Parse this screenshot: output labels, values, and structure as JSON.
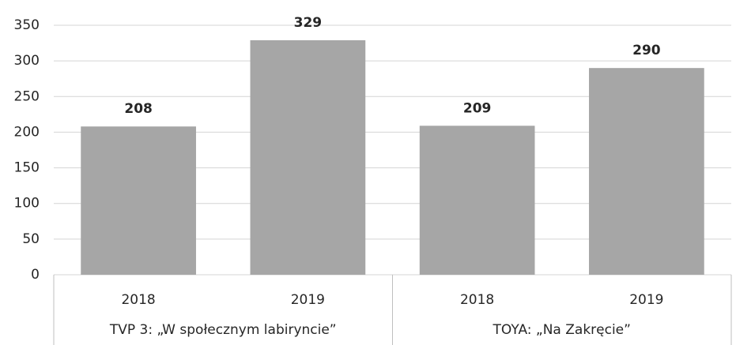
{
  "chart_data": {
    "type": "bar",
    "categories": [
      "2018",
      "2019",
      "2018",
      "2019"
    ],
    "groups": [
      "TVP 3: „W społecznym labiryncie”",
      "TOYA: „Na Zakręcie”"
    ],
    "values": [
      208,
      329,
      209,
      290
    ],
    "color": "#a6a6a6",
    "ylim": [
      0,
      350
    ],
    "yticks": [
      0,
      50,
      100,
      150,
      200,
      250,
      300,
      350
    ],
    "grid": true
  }
}
